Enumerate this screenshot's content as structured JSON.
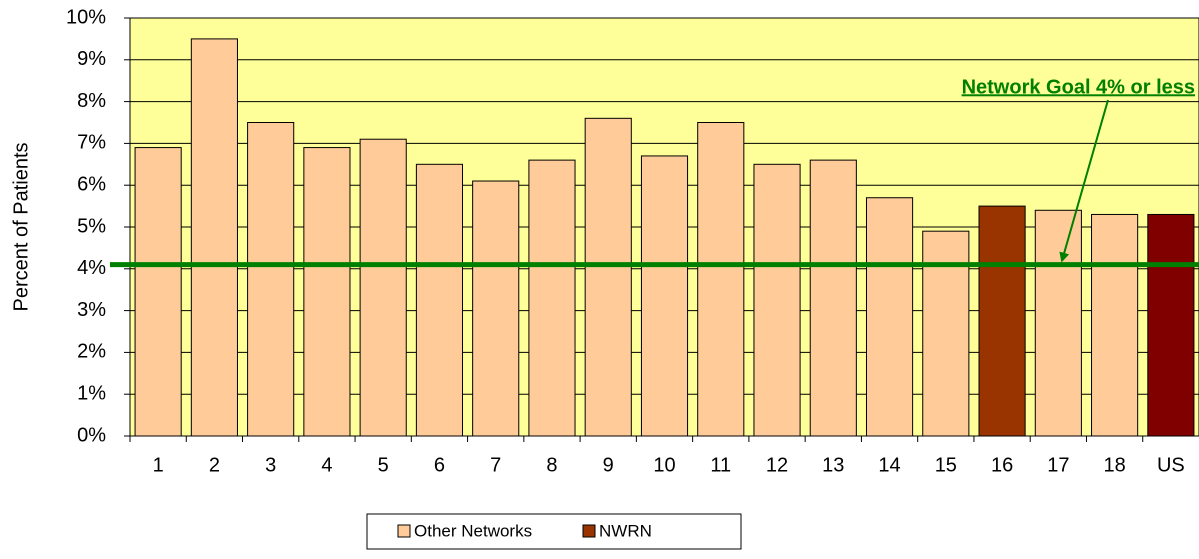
{
  "chart_data": {
    "type": "bar",
    "y_label": "Percent of Patients",
    "categories": [
      "1",
      "2",
      "3",
      "4",
      "5",
      "6",
      "7",
      "8",
      "9",
      "10",
      "11",
      "12",
      "13",
      "14",
      "15",
      "16",
      "17",
      "18",
      "US"
    ],
    "values": [
      6.9,
      9.5,
      7.5,
      6.9,
      7.1,
      6.5,
      6.1,
      6.6,
      7.6,
      6.7,
      7.5,
      6.5,
      6.6,
      5.7,
      4.9,
      5.5,
      5.4,
      5.3,
      5.3
    ],
    "colors": [
      "#ffcc99",
      "#ffcc99",
      "#ffcc99",
      "#ffcc99",
      "#ffcc99",
      "#ffcc99",
      "#ffcc99",
      "#ffcc99",
      "#ffcc99",
      "#ffcc99",
      "#ffcc99",
      "#ffcc99",
      "#ffcc99",
      "#ffcc99",
      "#ffcc99",
      "#993300",
      "#ffcc99",
      "#ffcc99",
      "#800000"
    ],
    "legend": [
      {
        "name": "Other Networks",
        "color": "#ffcc99"
      },
      {
        "name": "NWRN",
        "color": "#993300"
      }
    ],
    "ylim": [
      0,
      10
    ],
    "yticks": [
      {
        "value": 0,
        "label": "0%"
      },
      {
        "value": 1,
        "label": "1%"
      },
      {
        "value": 2,
        "label": "2%"
      },
      {
        "value": 3,
        "label": "3%"
      },
      {
        "value": 4,
        "label": "4%"
      },
      {
        "value": 5,
        "label": "5%"
      },
      {
        "value": 6,
        "label": "6%"
      },
      {
        "value": 7,
        "label": "7%"
      },
      {
        "value": 8,
        "label": "8%"
      },
      {
        "value": 9,
        "label": "9%"
      },
      {
        "value": 10,
        "label": "10%"
      }
    ],
    "grid": true,
    "plot_background": "#ffff99",
    "goal": {
      "value": 4.1,
      "label": "Network Goal 4% or less",
      "color": "#008000"
    }
  }
}
